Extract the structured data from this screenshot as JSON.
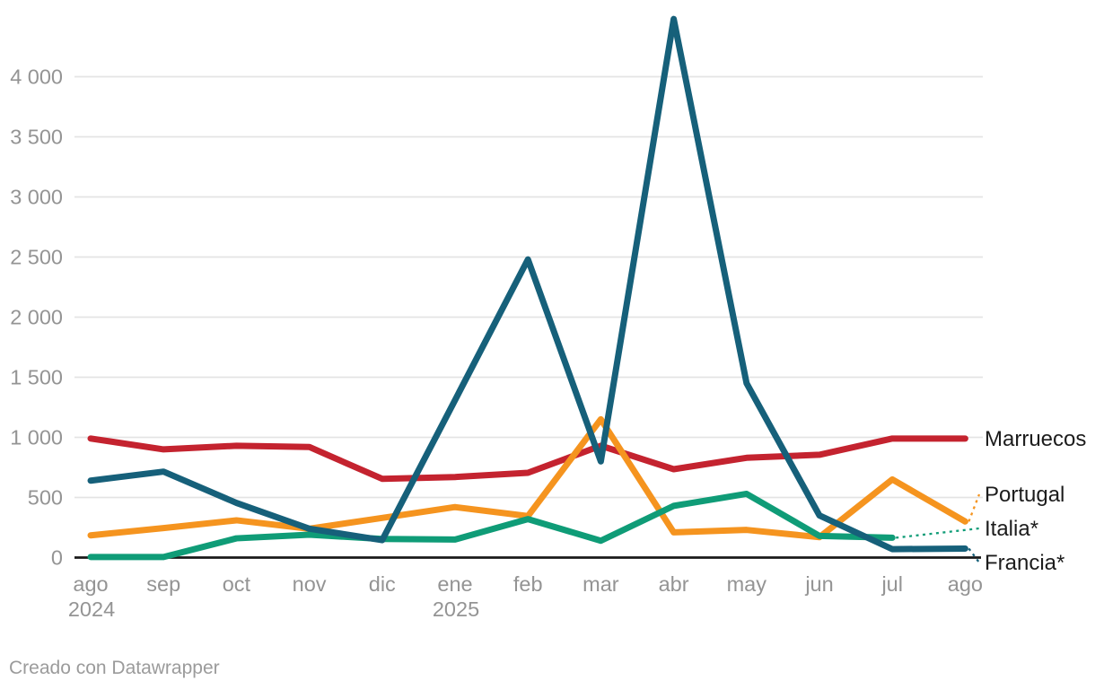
{
  "chart_data": {
    "type": "line",
    "title": "",
    "x_axis": {
      "ticks": [
        {
          "label": "ago",
          "year": "2024"
        },
        {
          "label": "sep"
        },
        {
          "label": "oct"
        },
        {
          "label": "nov"
        },
        {
          "label": "dic"
        },
        {
          "label": "ene",
          "year": "2025"
        },
        {
          "label": "feb"
        },
        {
          "label": "mar"
        },
        {
          "label": "abr"
        },
        {
          "label": "may"
        },
        {
          "label": "jun"
        },
        {
          "label": "jul"
        },
        {
          "label": "ago"
        }
      ]
    },
    "y_axis": {
      "range": [
        0,
        4500
      ],
      "ticks": [
        {
          "value": 0,
          "label": "0"
        },
        {
          "value": 500,
          "label": "500"
        },
        {
          "value": 1000,
          "label": "1 000"
        },
        {
          "value": 1500,
          "label": "1 500"
        },
        {
          "value": 2000,
          "label": "2 000"
        },
        {
          "value": 2500,
          "label": "2 500"
        },
        {
          "value": 3000,
          "label": "3 000"
        },
        {
          "value": 3500,
          "label": "3 500"
        },
        {
          "value": 4000,
          "label": "4 000"
        }
      ]
    },
    "grid": "horizontal",
    "legend_position": "labels-at-line-ends-right",
    "series": [
      {
        "name": "Marruecos",
        "color": "#c4232f",
        "leader_dashed": false,
        "values": [
          990,
          900,
          930,
          920,
          655,
          670,
          705,
          930,
          735,
          830,
          855,
          990,
          990
        ]
      },
      {
        "name": "Portugal",
        "color": "#f5941f",
        "leader_dashed": true,
        "values": [
          185,
          245,
          310,
          240,
          330,
          420,
          345,
          1150,
          210,
          230,
          170,
          650,
          300
        ]
      },
      {
        "name": "Italia*",
        "color": "#0f9c77",
        "leader_dashed": true,
        "values": [
          5,
          5,
          160,
          190,
          155,
          150,
          320,
          140,
          430,
          530,
          180,
          165,
          null
        ]
      },
      {
        "name": "Francia*",
        "color": "#16607a",
        "leader_dashed": true,
        "values": [
          640,
          715,
          455,
          240,
          145,
          1310,
          2480,
          800,
          4480,
          1450,
          350,
          70,
          75
        ]
      }
    ],
    "style": {
      "grid_color": "#e4e4e4",
      "axis_color": "#191919",
      "tick_color": "#949494",
      "label_color": "#1c1c1c"
    }
  },
  "footer": {
    "credit": "Creado con Datawrapper"
  }
}
